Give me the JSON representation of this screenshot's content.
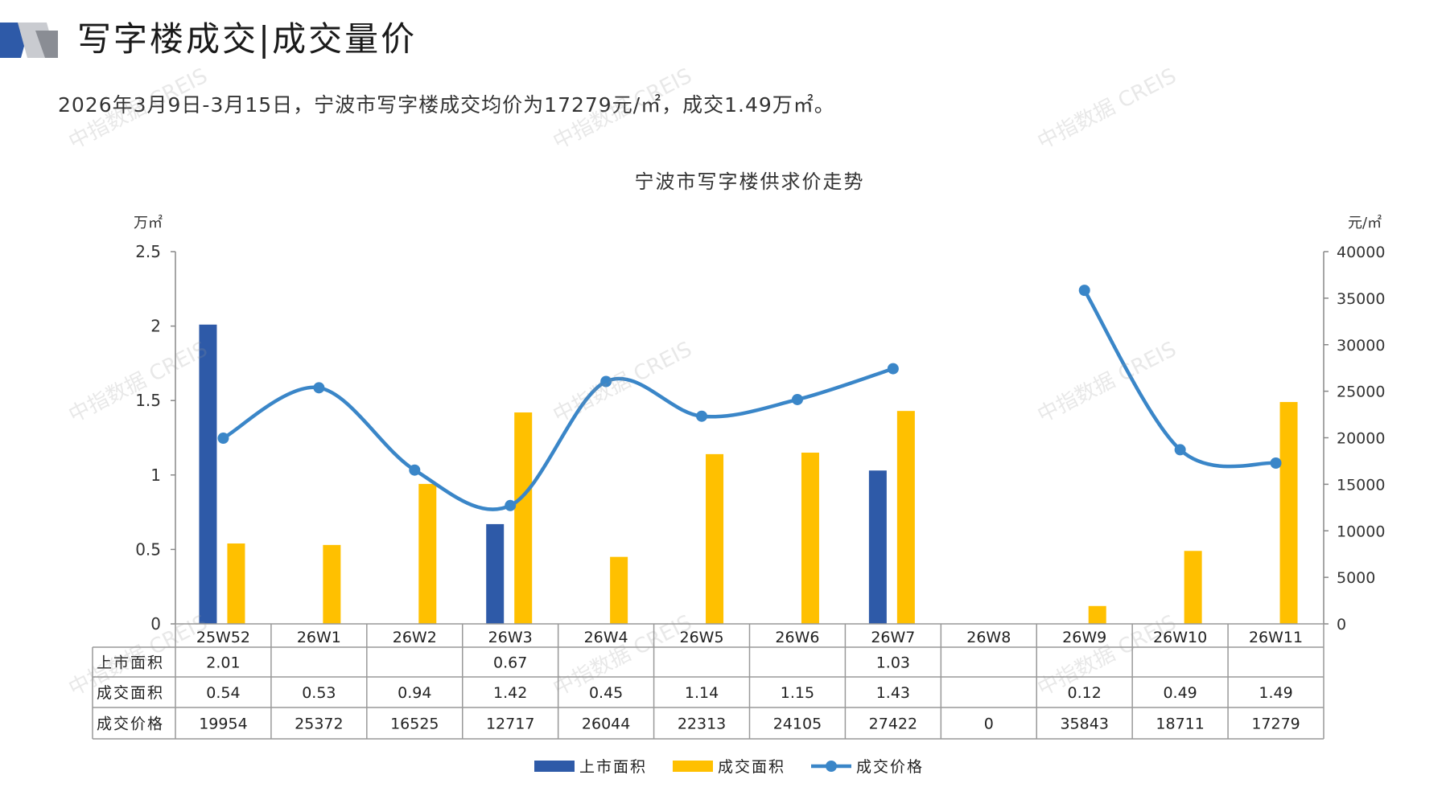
{
  "header": {
    "title": "写字楼成交|成交量价",
    "summary": "2026年3月9日-3月15日，宁波市写字楼成交均价为17279元/㎡，成交1.49万㎡。"
  },
  "watermark": {
    "text": "中指数据 CREIS"
  },
  "colors": {
    "listed": "#2E5AA8",
    "traded": "#FFC000",
    "price": "#3A86C8",
    "grid": "#999999"
  },
  "chart_data": {
    "type": "bar+line+table",
    "title": "宁波市写字楼供求价走势",
    "ylabel_left": "万㎡",
    "ylabel_right": "元/㎡",
    "ylim_left": [
      0,
      2.5
    ],
    "ylim_right": [
      0,
      40000
    ],
    "yticks_left": [
      "0",
      "0.5",
      "1",
      "1.5",
      "2",
      "2.5"
    ],
    "yticks_right": [
      "0",
      "5000",
      "10000",
      "15000",
      "20000",
      "25000",
      "30000",
      "35000",
      "40000"
    ],
    "categories": [
      "25W52",
      "26W1",
      "26W2",
      "26W3",
      "26W4",
      "26W5",
      "26W6",
      "26W7",
      "26W8",
      "26W9",
      "26W10",
      "26W11"
    ],
    "series": [
      {
        "name": "上市面积",
        "type": "bar",
        "axis": "left",
        "values": [
          2.01,
          null,
          null,
          0.67,
          null,
          null,
          null,
          1.03,
          null,
          null,
          null,
          null
        ],
        "labels": [
          "2.01",
          "",
          "",
          "0.67",
          "",
          "",
          "",
          "1.03",
          "",
          "",
          "",
          ""
        ]
      },
      {
        "name": "成交面积",
        "type": "bar",
        "axis": "left",
        "values": [
          0.54,
          0.53,
          0.94,
          1.42,
          0.45,
          1.14,
          1.15,
          1.43,
          null,
          0.12,
          0.49,
          1.49
        ],
        "labels": [
          "0.54",
          "0.53",
          "0.94",
          "1.42",
          "0.45",
          "1.14",
          "1.15",
          "1.43",
          "",
          "0.12",
          "0.49",
          "1.49"
        ]
      },
      {
        "name": "成交价格",
        "type": "line",
        "axis": "right",
        "values": [
          19954,
          25372,
          16525,
          12717,
          26044,
          22313,
          24105,
          27422,
          0,
          35843,
          18711,
          17279
        ],
        "labels": [
          "19954",
          "25372",
          "16525",
          "12717",
          "26044",
          "22313",
          "24105",
          "27422",
          "0",
          "35843",
          "18711",
          "17279"
        ]
      }
    ],
    "legend": {
      "position": "bottom"
    },
    "grid": false
  }
}
